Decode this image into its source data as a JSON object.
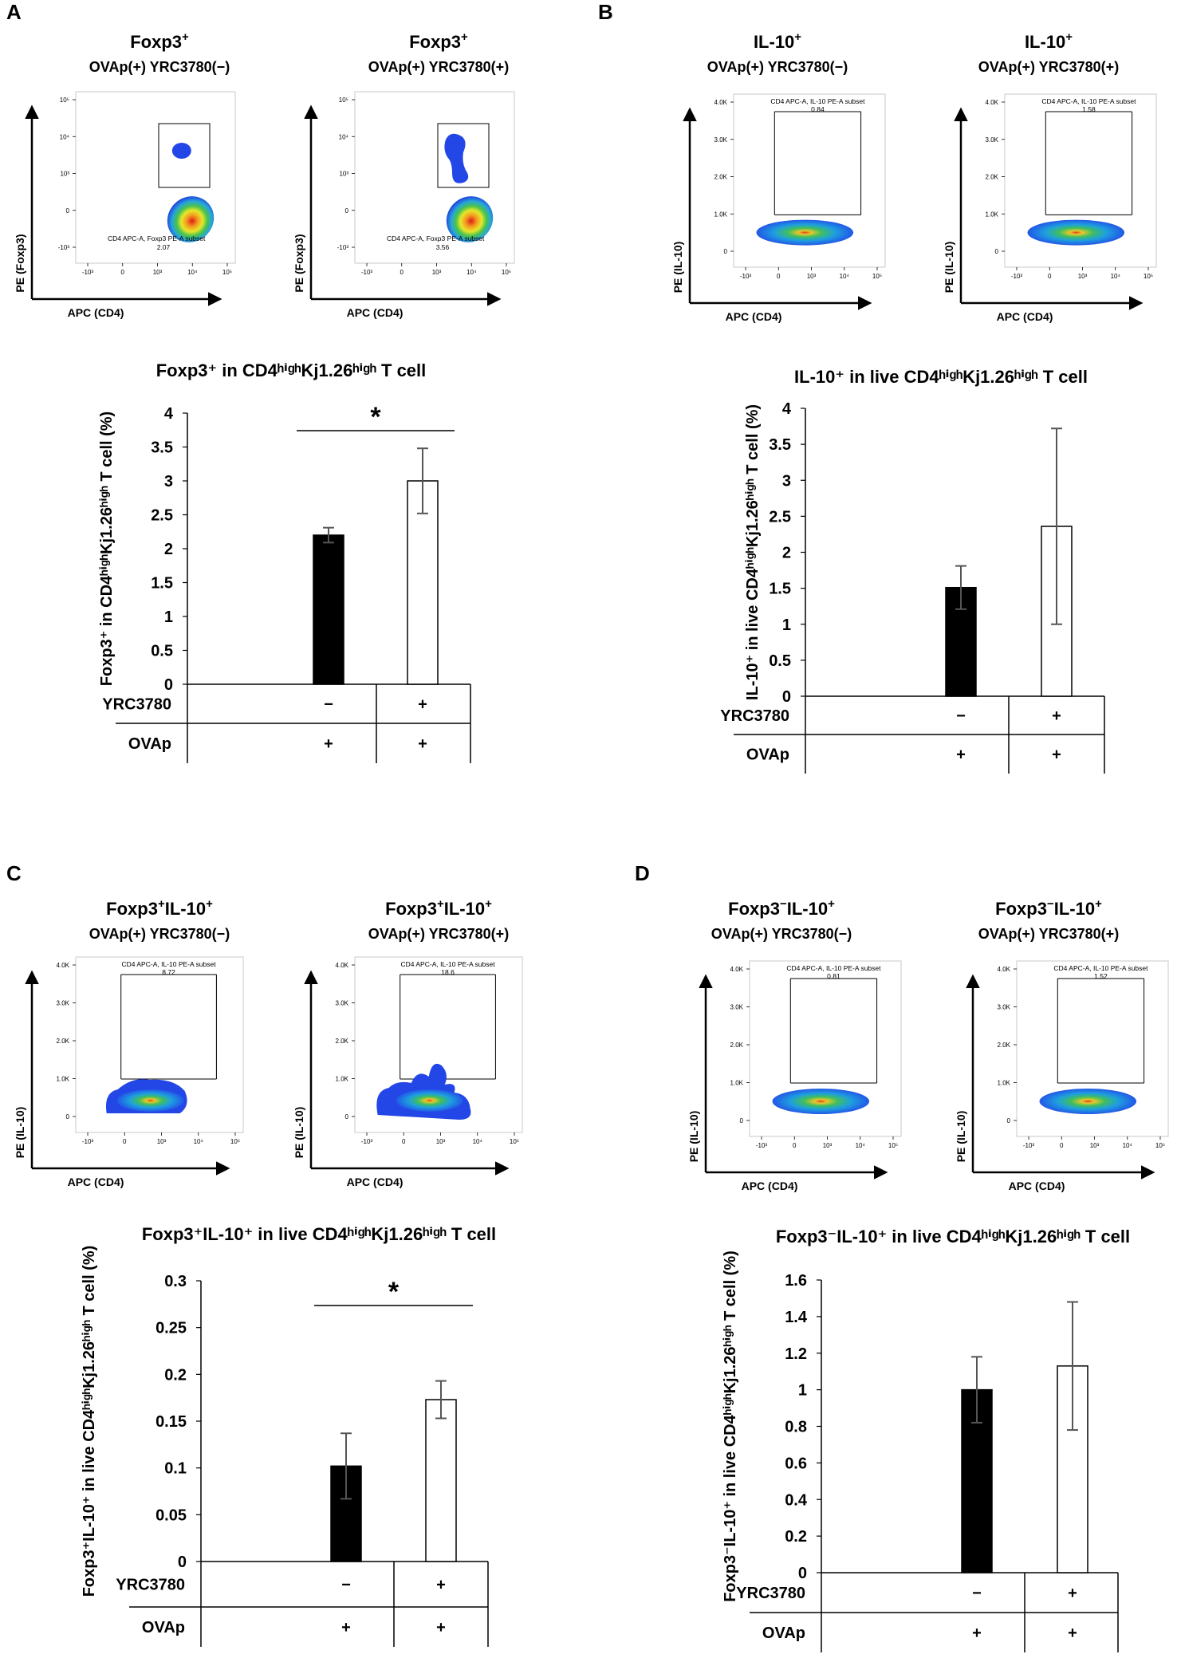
{
  "panels": [
    {
      "letter": "A",
      "flow": [
        {
          "title": "Foxp3",
          "title_sup": "+",
          "title_rest": "",
          "sub": "OVAp(+) YRC3780(−)",
          "gate_name": "CD4 APC-A, Foxp3 PE-A subset",
          "gate_value": "2.07",
          "x_axis": "APC (CD4)",
          "y_axis": "PE (Foxp3)",
          "y_ticks": [
            "10⁵",
            "10⁴",
            "10³",
            "0",
            "-10³"
          ],
          "x_ticks": [
            "-10³",
            "0",
            "10³",
            "10⁴",
            "10⁵"
          ]
        },
        {
          "title": "Foxp3",
          "title_sup": "+",
          "title_rest": "",
          "sub": "OVAp(+) YRC3780(+)",
          "gate_name": "CD4 APC-A, Foxp3 PE-A subset",
          "gate_value": "3.56",
          "x_axis": "APC (CD4)",
          "y_axis": "PE (Foxp3)",
          "y_ticks": [
            "10⁵",
            "10⁴",
            "10³",
            "0",
            "-10³"
          ],
          "x_ticks": [
            "-10³",
            "0",
            "10³",
            "10⁴",
            "10⁵"
          ]
        }
      ]
    },
    {
      "letter": "B",
      "flow": [
        {
          "title": "IL-10",
          "title_sup": "+",
          "title_rest": "",
          "sub": "OVAp(+) YRC3780(−)",
          "gate_name": "CD4 APC-A, IL-10 PE-A subset",
          "gate_value": "0.84",
          "x_axis": "APC (CD4)",
          "y_axis": "PE (IL-10)",
          "y_ticks": [
            "4.0K",
            "3.0K",
            "2.0K",
            "1.0K",
            "0"
          ],
          "x_ticks": [
            "-10³",
            "0",
            "10³",
            "10⁴",
            "10⁵"
          ]
        },
        {
          "title": "IL-10",
          "title_sup": "+",
          "title_rest": "",
          "sub": "OVAp(+) YRC3780(+)",
          "gate_name": "CD4 APC-A, IL-10 PE-A subset",
          "gate_value": "1.58",
          "x_axis": "APC (CD4)",
          "y_axis": "PE (IL-10)",
          "y_ticks": [
            "4.0K",
            "3.0K",
            "2.0K",
            "1.0K",
            "0"
          ],
          "x_ticks": [
            "-10³",
            "0",
            "10³",
            "10⁴",
            "10⁵"
          ]
        }
      ]
    },
    {
      "letter": "C",
      "flow": [
        {
          "title": "Foxp3",
          "title_sup": "+",
          "title_rest": "IL-10",
          "title_sup2": "+",
          "sub": "OVAp(+) YRC3780(−)",
          "gate_name": "CD4 APC-A, IL-10 PE-A subset",
          "gate_value": "8.72",
          "x_axis": "APC (CD4)",
          "y_axis": "PE (IL-10)",
          "y_ticks": [
            "4.0K",
            "3.0K",
            "2.0K",
            "1.0K",
            "0"
          ],
          "x_ticks": [
            "-10³",
            "0",
            "10³",
            "10⁴",
            "10⁵"
          ]
        },
        {
          "title": "Foxp3",
          "title_sup": "+",
          "title_rest": "IL-10",
          "title_sup2": "+",
          "sub": "OVAp(+) YRC3780(+)",
          "gate_name": "CD4 APC-A, IL-10 PE-A subset",
          "gate_value": "18.6",
          "x_axis": "APC (CD4)",
          "y_axis": "PE (IL-10)",
          "y_ticks": [
            "4.0K",
            "3.0K",
            "2.0K",
            "1.0K",
            "0"
          ],
          "x_ticks": [
            "-10³",
            "0",
            "10³",
            "10⁴",
            "10⁵"
          ]
        }
      ]
    },
    {
      "letter": "D",
      "flow": [
        {
          "title": "Foxp3",
          "title_sup": "−",
          "title_rest": "IL-10",
          "title_sup2": "+",
          "sub": "OVAp(+) YRC3780(−)",
          "gate_name": "CD4 APC-A, IL-10 PE-A subset",
          "gate_value": "0.81",
          "x_axis": "APC (CD4)",
          "y_axis": "PE (IL-10)",
          "y_ticks": [
            "4.0K",
            "3.0K",
            "2.0K",
            "1.0K",
            "0"
          ],
          "x_ticks": [
            "-10³",
            "0",
            "10³",
            "10⁴",
            "10⁵"
          ]
        },
        {
          "title": "Foxp3",
          "title_sup": "−",
          "title_rest": "IL-10",
          "title_sup2": "+",
          "sub": "OVAp(+) YRC3780(+)",
          "gate_name": "CD4 APC-A, IL-10 PE-A subset",
          "gate_value": "1.52",
          "x_axis": "APC (CD4)",
          "y_axis": "PE (IL-10)",
          "y_ticks": [
            "4.0K",
            "3.0K",
            "2.0K",
            "1.0K",
            "0"
          ],
          "x_ticks": [
            "-10³",
            "0",
            "10³",
            "10⁴",
            "10⁵"
          ]
        }
      ]
    }
  ],
  "chart_data": [
    {
      "type": "bar",
      "panel": "A",
      "title": "Foxp3⁺ in CD4ʰⁱᵍʰKj1.26ʰⁱᵍʰ T cell",
      "ylabel": "Foxp3⁺ in CD4ʰⁱᵍʰKj1.26ʰⁱᵍʰ T cell (%)",
      "ylim": [
        0,
        4
      ],
      "yticks": [
        "0",
        "0.5",
        "1",
        "1.5",
        "2",
        "2.5",
        "3",
        "3.5",
        "4"
      ],
      "categories": [
        "YRC3780 −, OVAp +",
        "YRC3780 +, OVAp +"
      ],
      "values": [
        2.2,
        3.0
      ],
      "errors": [
        0.11,
        0.48
      ],
      "fills": [
        "#000000",
        "#ffffff"
      ],
      "significance": "*",
      "rows": [
        {
          "label": "YRC3780",
          "marks": [
            "−",
            "+"
          ]
        },
        {
          "label": "OVAp",
          "marks": [
            "+",
            "+"
          ]
        }
      ]
    },
    {
      "type": "bar",
      "panel": "B",
      "title": "IL-10⁺ in live CD4ʰⁱᵍʰKj1.26ʰⁱᵍʰ T cell",
      "ylabel": "IL-10⁺ in live CD4ʰⁱᵍʰKj1.26ʰⁱᵍʰ T cell (%)",
      "ylim": [
        0,
        4
      ],
      "yticks": [
        "0",
        "0.5",
        "1",
        "1.5",
        "2",
        "2.5",
        "3",
        "3.5",
        "4"
      ],
      "categories": [
        "YRC3780 −, OVAp +",
        "YRC3780 +, OVAp +"
      ],
      "values": [
        1.51,
        2.36
      ],
      "errors": [
        0.3,
        1.36
      ],
      "fills": [
        "#000000",
        "#ffffff"
      ],
      "significance": "",
      "rows": [
        {
          "label": "YRC3780",
          "marks": [
            "−",
            "+"
          ]
        },
        {
          "label": "OVAp",
          "marks": [
            "+",
            "+"
          ]
        }
      ]
    },
    {
      "type": "bar",
      "panel": "C",
      "title": "Foxp3⁺IL-10⁺ in live CD4ʰⁱᵍʰKj1.26ʰⁱᵍʰ T cell",
      "ylabel": "Foxp3⁺IL-10⁺ in live CD4ʰⁱᵍʰKj1.26ʰⁱᵍʰ T cell (%)",
      "ylim": [
        0,
        0.3
      ],
      "yticks": [
        "0",
        "0.05",
        "0.1",
        "0.15",
        "0.2",
        "0.25",
        "0.3"
      ],
      "categories": [
        "YRC3780 −, OVAp +",
        "YRC3780 +, OVAp +"
      ],
      "values": [
        0.102,
        0.173
      ],
      "errors": [
        0.035,
        0.02
      ],
      "fills": [
        "#000000",
        "#ffffff"
      ],
      "significance": "*",
      "rows": [
        {
          "label": "YRC3780",
          "marks": [
            "−",
            "+"
          ]
        },
        {
          "label": "OVAp",
          "marks": [
            "+",
            "+"
          ]
        }
      ]
    },
    {
      "type": "bar",
      "panel": "D",
      "title": "Foxp3⁻IL-10⁺ in live CD4ʰⁱᵍʰKj1.26ʰⁱᵍʰ T cell",
      "ylabel": "Foxp3⁻IL-10⁺ in live CD4ʰⁱᵍʰKj1.26ʰⁱᵍʰ T cell (%)",
      "ylim": [
        0,
        1.6
      ],
      "yticks": [
        "0",
        "0.2",
        "0.4",
        "0.6",
        "0.8",
        "1",
        "1.2",
        "1.4",
        "1.6"
      ],
      "categories": [
        "YRC3780 −, OVAp +",
        "YRC3780 +, OVAp +"
      ],
      "values": [
        1.0,
        1.13
      ],
      "errors": [
        0.18,
        0.35
      ],
      "fills": [
        "#000000",
        "#ffffff"
      ],
      "significance": "",
      "rows": [
        {
          "label": "YRC3780",
          "marks": [
            "−",
            "+"
          ]
        },
        {
          "label": "OVAp",
          "marks": [
            "+",
            "+"
          ]
        }
      ]
    }
  ]
}
